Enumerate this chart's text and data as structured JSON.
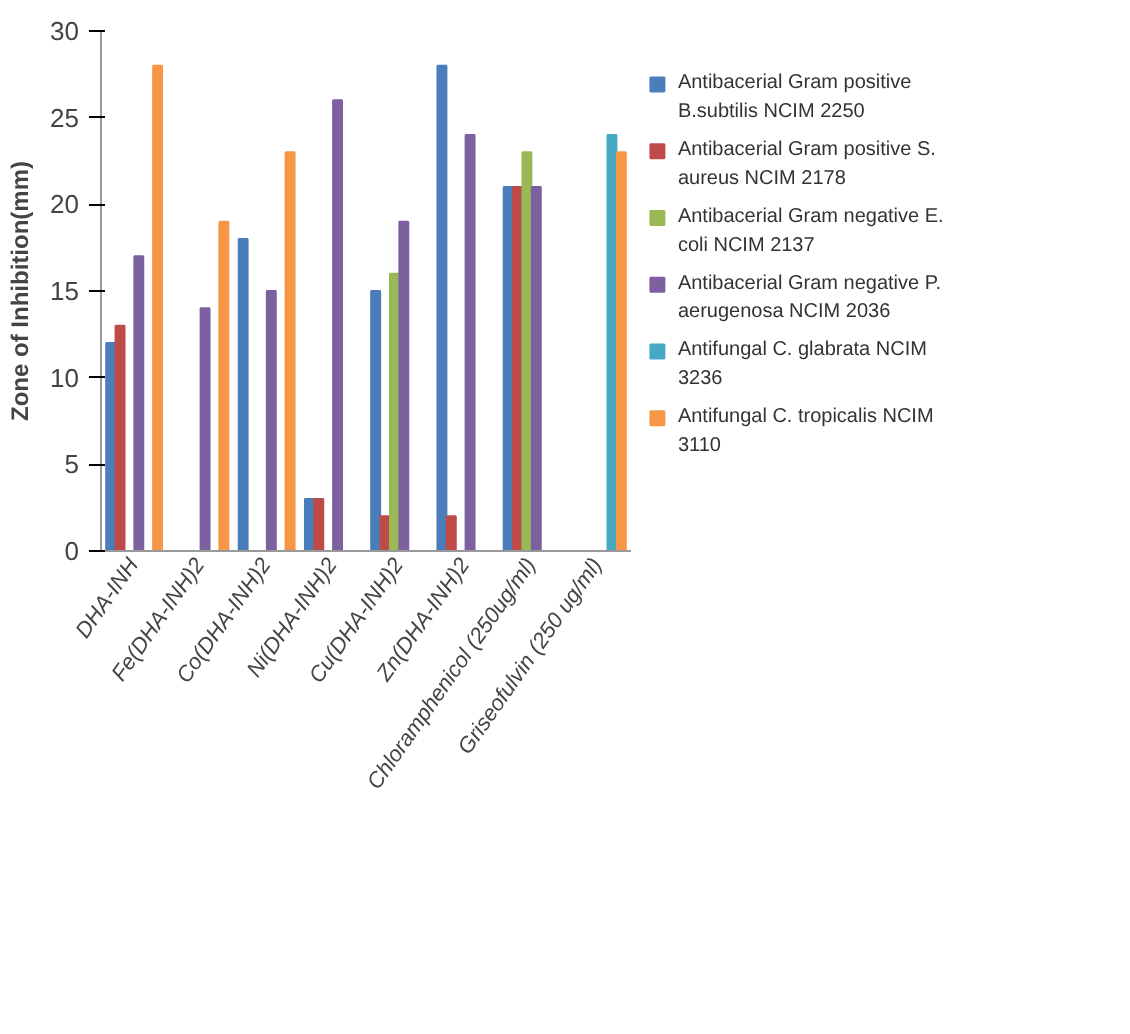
{
  "chart_data": {
    "type": "bar",
    "ylabel": "Zone of Inhibition(mm)",
    "categories": [
      "DHA-INH",
      "Fe(DHA-INH)2",
      "Co(DHA-INH)2",
      "Ni(DHA-INH)2",
      "Cu(DHA-INH)2",
      "Zn(DHA-INH)2",
      "Chloramphenicol (250ug/ml)",
      "Griseofulvin (250 ug/ml)"
    ],
    "series": [
      {
        "name": "Antibacerial  Gram positive B.subtilis NCIM 2250",
        "color": "#4a7ebb",
        "values": [
          12,
          null,
          18,
          3,
          15,
          28,
          21,
          null
        ]
      },
      {
        "name": "Antibacerial  Gram positive S. aureus NCIM 2178",
        "color": "#be4b48",
        "values": [
          13,
          null,
          null,
          3,
          2,
          2,
          21,
          null
        ]
      },
      {
        "name": "Antibacerial  Gram negative E. coli NCIM 2137",
        "color": "#98b954",
        "values": [
          null,
          null,
          null,
          null,
          16,
          null,
          23,
          null
        ]
      },
      {
        "name": "Antibacerial  Gram negative P. aerugenosa NCIM 2036",
        "color": "#7d60a0",
        "values": [
          17,
          14,
          15,
          26,
          19,
          24,
          21,
          null
        ]
      },
      {
        "name": "Antifungal C. glabrata NCIM 3236",
        "color": "#46aac5",
        "values": [
          null,
          null,
          null,
          null,
          null,
          null,
          null,
          24
        ]
      },
      {
        "name": "Antifungal C. tropicalis NCIM 3110",
        "color": "#f79646",
        "values": [
          28,
          19,
          23,
          null,
          null,
          null,
          null,
          23
        ]
      }
    ],
    "ylim": [
      0,
      30
    ],
    "yticks": [
      0,
      5,
      10,
      15,
      20,
      25,
      30
    ],
    "grid": false,
    "legend": "right"
  }
}
